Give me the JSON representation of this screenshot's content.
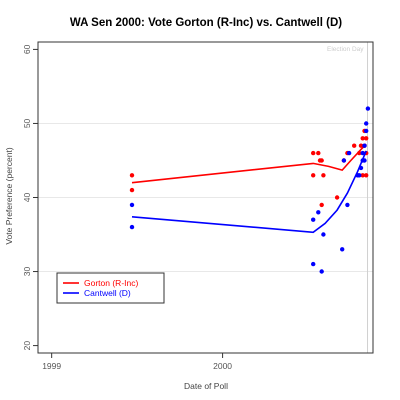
{
  "chart_data": {
    "type": "scatter",
    "title": "WA Sen 2000: Vote Gorton (R-Inc) vs. Cantwell (D)",
    "xlabel": "Date of Poll",
    "ylabel": "Vote Preference (percent)",
    "xlim": [
      1998.92,
      2000.88
    ],
    "ylim": [
      19,
      61
    ],
    "x_ticks": [
      {
        "value": 1999,
        "label": "1999"
      },
      {
        "value": 2000,
        "label": "2000"
      }
    ],
    "y_ticks": [
      20,
      30,
      40,
      50,
      60
    ],
    "grid": true,
    "gridlines_y": [
      30,
      40,
      50
    ],
    "legend_position": "bottom-left",
    "annotation": {
      "label": "Election Day",
      "x": 2000.848
    },
    "series": [
      {
        "name": "Gorton (R-Inc)",
        "color": "#ff0000",
        "points": [
          {
            "x": 1999.47,
            "y": 43
          },
          {
            "x": 1999.47,
            "y": 41
          },
          {
            "x": 2000.53,
            "y": 46
          },
          {
            "x": 2000.53,
            "y": 43
          },
          {
            "x": 2000.56,
            "y": 46
          },
          {
            "x": 2000.57,
            "y": 45
          },
          {
            "x": 2000.58,
            "y": 45
          },
          {
            "x": 2000.59,
            "y": 43
          },
          {
            "x": 2000.58,
            "y": 39
          },
          {
            "x": 2000.67,
            "y": 40
          },
          {
            "x": 2000.71,
            "y": 45
          },
          {
            "x": 2000.73,
            "y": 46
          },
          {
            "x": 2000.77,
            "y": 47
          },
          {
            "x": 2000.79,
            "y": 43
          },
          {
            "x": 2000.8,
            "y": 46
          },
          {
            "x": 2000.81,
            "y": 47
          },
          {
            "x": 2000.82,
            "y": 48
          },
          {
            "x": 2000.82,
            "y": 43
          },
          {
            "x": 2000.83,
            "y": 49
          },
          {
            "x": 2000.83,
            "y": 47
          },
          {
            "x": 2000.84,
            "y": 48
          },
          {
            "x": 2000.84,
            "y": 46
          },
          {
            "x": 2000.84,
            "y": 43
          }
        ],
        "trend": [
          {
            "x": 1999.47,
            "y": 42
          },
          {
            "x": 2000.53,
            "y": 44.6
          },
          {
            "x": 2000.62,
            "y": 44.2
          },
          {
            "x": 2000.7,
            "y": 43.7
          },
          {
            "x": 2000.75,
            "y": 45.0
          },
          {
            "x": 2000.81,
            "y": 46.5
          },
          {
            "x": 2000.84,
            "y": 47.2
          }
        ]
      },
      {
        "name": "Cantwell (D)",
        "color": "#0000ff",
        "points": [
          {
            "x": 1999.47,
            "y": 39
          },
          {
            "x": 1999.47,
            "y": 36
          },
          {
            "x": 2000.53,
            "y": 37
          },
          {
            "x": 2000.53,
            "y": 31
          },
          {
            "x": 2000.56,
            "y": 38
          },
          {
            "x": 2000.58,
            "y": 30
          },
          {
            "x": 2000.59,
            "y": 35
          },
          {
            "x": 2000.7,
            "y": 33
          },
          {
            "x": 2000.71,
            "y": 45
          },
          {
            "x": 2000.73,
            "y": 39
          },
          {
            "x": 2000.74,
            "y": 46
          },
          {
            "x": 2000.79,
            "y": 43
          },
          {
            "x": 2000.8,
            "y": 43
          },
          {
            "x": 2000.81,
            "y": 44
          },
          {
            "x": 2000.82,
            "y": 46
          },
          {
            "x": 2000.82,
            "y": 45
          },
          {
            "x": 2000.83,
            "y": 47
          },
          {
            "x": 2000.83,
            "y": 45
          },
          {
            "x": 2000.84,
            "y": 49
          },
          {
            "x": 2000.84,
            "y": 50
          },
          {
            "x": 2000.85,
            "y": 52
          }
        ],
        "trend": [
          {
            "x": 1999.47,
            "y": 37.4
          },
          {
            "x": 2000.53,
            "y": 35.3
          },
          {
            "x": 2000.6,
            "y": 36.5
          },
          {
            "x": 2000.67,
            "y": 38.3
          },
          {
            "x": 2000.73,
            "y": 40.6
          },
          {
            "x": 2000.79,
            "y": 43.5
          },
          {
            "x": 2000.84,
            "y": 46.3
          }
        ]
      }
    ]
  }
}
